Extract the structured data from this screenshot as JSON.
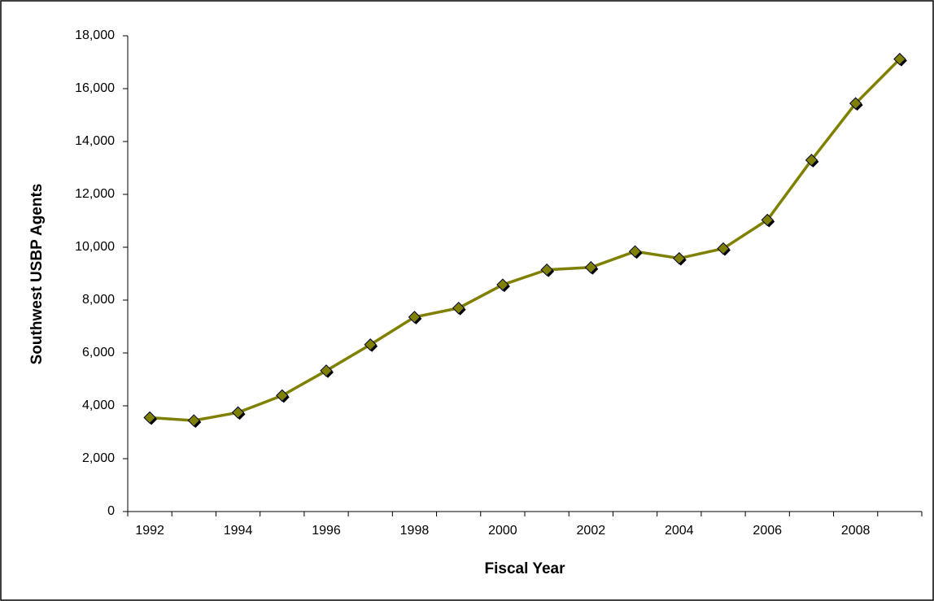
{
  "chart_data": {
    "type": "line",
    "x_label": "Fiscal Year",
    "y_label": "Southwest USBP Agents",
    "categories": [
      "1992",
      null,
      "1994",
      null,
      "1996",
      null,
      "1998",
      null,
      "2000",
      null,
      "2002",
      null,
      "2004",
      null,
      "2006",
      null,
      "2008",
      null
    ],
    "series": [
      {
        "name": "Southwest USBP Agents",
        "color": "#808000",
        "values": [
          3555,
          3444,
          3747,
          4388,
          5329,
          6315,
          7357,
          7699,
          8580,
          9147,
          9239,
          9840,
          9580,
          9950,
          11032,
          13297,
          15442,
          17119
        ]
      }
    ],
    "ylim": [
      0,
      18000
    ],
    "yticks": [
      0,
      {
        "value": 2000,
        "label": "2,000"
      },
      {
        "value": 4000,
        "label": "4,000"
      },
      {
        "value": 6000,
        "label": "6,000"
      },
      {
        "value": 8000,
        "label": "8,000"
      },
      {
        "value": 10000,
        "label": "10,000"
      },
      {
        "value": 12000,
        "label": "12,000"
      },
      {
        "value": 14000,
        "label": "14,000"
      },
      {
        "value": 16000,
        "label": "16,000"
      },
      {
        "value": 18000,
        "label": "18,000"
      }
    ]
  }
}
